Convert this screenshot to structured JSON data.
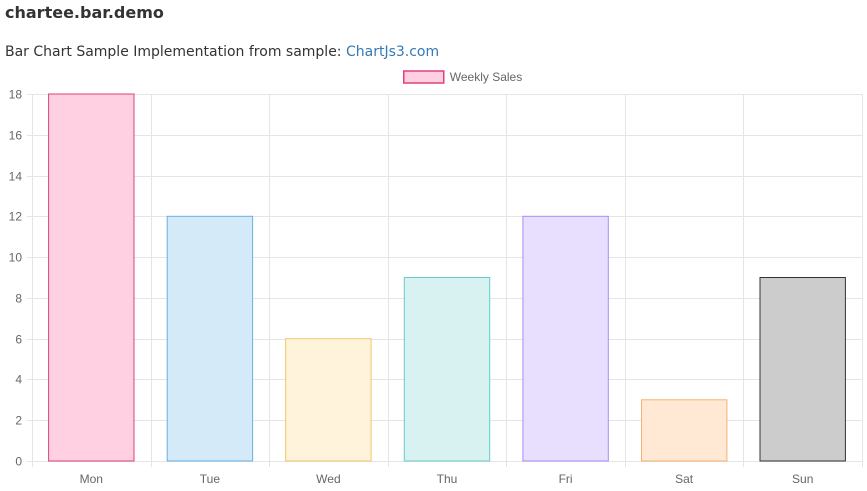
{
  "page": {
    "title": "chartee.bar.demo",
    "subtitle_prefix": "Bar Chart Sample Implementation from sample: ",
    "subtitle_link": "ChartJs3.com"
  },
  "colors": {
    "link": "#337ab7",
    "grid": "#e5e5e5",
    "tick_text": "#666666"
  },
  "chart_data": {
    "type": "bar",
    "categories": [
      "Mon",
      "Tue",
      "Wed",
      "Thu",
      "Fri",
      "Sat",
      "Sun"
    ],
    "series": [
      {
        "name": "Weekly Sales",
        "values": [
          18,
          12,
          6,
          9,
          12,
          3,
          9
        ],
        "fill_colors": [
          "#ffd0e1",
          "#d4eaf9",
          "#fff3dc",
          "#d8f2f2",
          "#e8dfff",
          "#ffe9d4",
          "#cccccc"
        ],
        "border_colors": [
          "#e0407a",
          "#66b0e6",
          "#f2c766",
          "#66cccc",
          "#a98bfa",
          "#f6b071",
          "#333333"
        ]
      }
    ],
    "legend": {
      "position": "top-center",
      "label": "Weekly Sales",
      "fill": "#ffd0e1",
      "border": "#e0407a"
    },
    "ylim": [
      0,
      18
    ],
    "yticks": [
      0,
      2,
      4,
      6,
      8,
      10,
      12,
      14,
      16,
      18
    ],
    "grid": true,
    "xlabel": "",
    "ylabel": ""
  }
}
